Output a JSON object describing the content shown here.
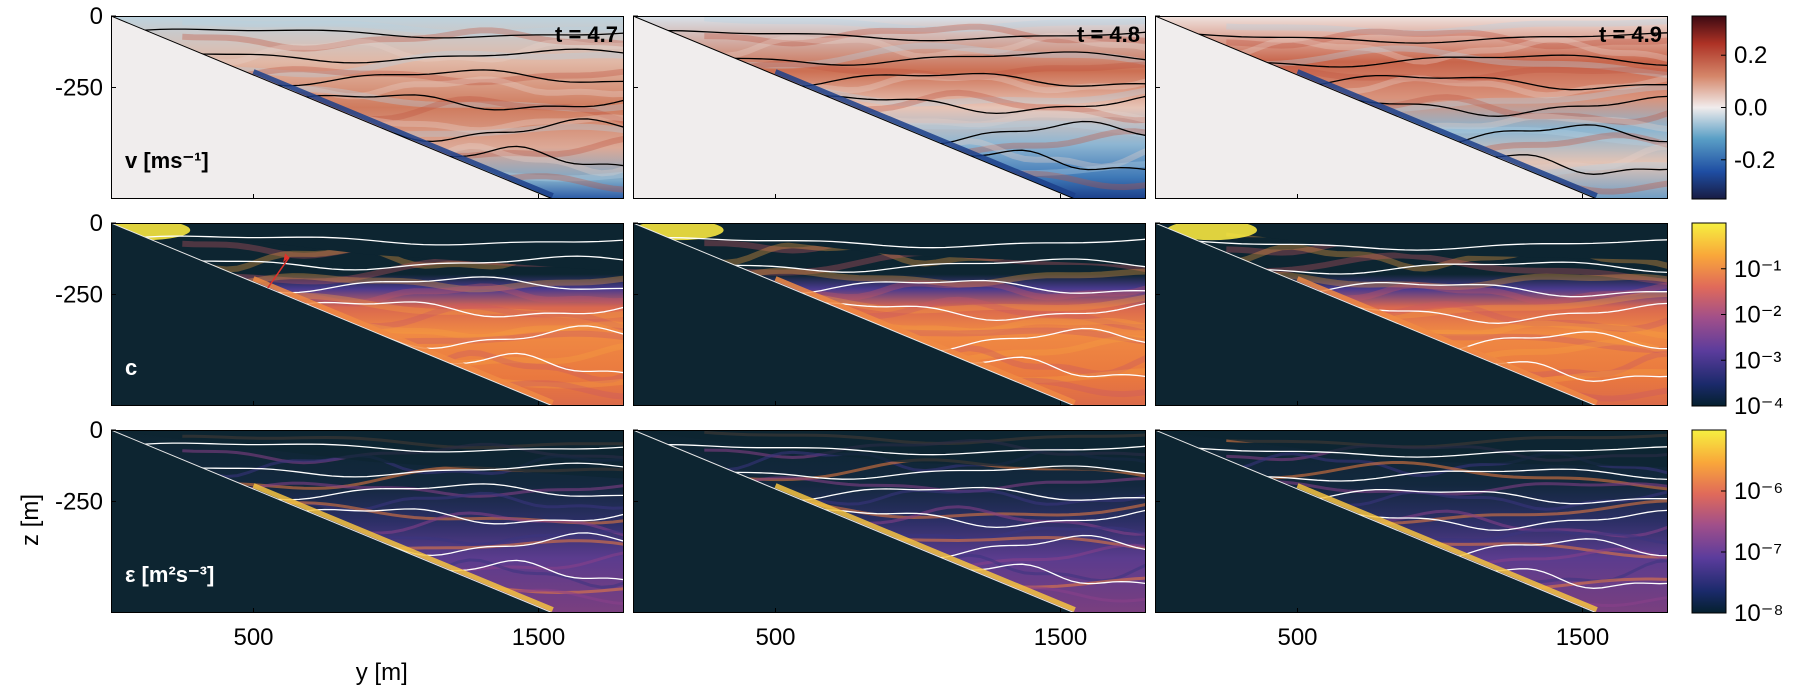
{
  "chart_data": [
    {
      "type": "heatmap",
      "row_label": "v [ms⁻¹]",
      "colormap": "balance",
      "clim": [
        -0.35,
        0.35
      ],
      "colorbar_ticks": [
        {
          "value": 0.2,
          "label": "0.2"
        },
        {
          "value": 0.0,
          "label": "0.0"
        },
        {
          "value": -0.2,
          "label": "-0.2"
        }
      ],
      "contour_color": "#000000"
    },
    {
      "type": "heatmap",
      "row_label": "c",
      "colormap": "thermal",
      "scale": "log",
      "clim": [
        0.0001,
        1
      ],
      "colorbar_ticks": [
        {
          "value": 0.1,
          "label": "10⁻¹"
        },
        {
          "value": 0.01,
          "label": "10⁻²"
        },
        {
          "value": 0.001,
          "label": "10⁻³"
        },
        {
          "value": 0.0001,
          "label": "10⁻⁴"
        }
      ],
      "contour_color": "#ffffff",
      "annotation": "red arrow"
    },
    {
      "type": "heatmap",
      "row_label": "ε [m²s⁻³]",
      "colormap": "thermal",
      "scale": "log",
      "clim": [
        1e-08,
        1e-05
      ],
      "colorbar_ticks": [
        {
          "value": 1e-06,
          "label": "10⁻⁶"
        },
        {
          "value": 1e-07,
          "label": "10⁻⁷"
        },
        {
          "value": 1e-08,
          "label": "10⁻⁸"
        }
      ],
      "contour_color": "#ffffff"
    }
  ],
  "times": [
    "t = 4.7",
    "t = 4.8",
    "t = 4.9"
  ],
  "xlabel": "y [m]",
  "ylabel": "z [m]",
  "xlim": [
    0,
    1800
  ],
  "ylim": [
    -640,
    0
  ],
  "x_ticks": [
    {
      "value": 500,
      "label": "500"
    },
    {
      "value": 1500,
      "label": "1500"
    }
  ],
  "y_ticks": [
    {
      "value": 0,
      "label": "0"
    },
    {
      "value": -250,
      "label": "-250"
    }
  ],
  "slope": {
    "x_start": 0,
    "x_end": 1550,
    "z_end": -640
  },
  "colors": {
    "land_top": "#f0eded",
    "land_dark": "#0d2531",
    "axis": "#000000"
  }
}
